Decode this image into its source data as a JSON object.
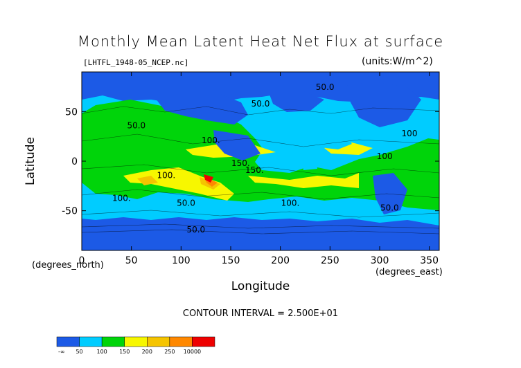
{
  "chart_data": {
    "type": "heatmap",
    "title": "Monthly Mean Latent Heat Net Flux at surface",
    "source_label": "[LHTFL_1948-05_NCEP.nc]",
    "units_label": "(units:W/m^2)",
    "xlabel": "Longitude",
    "xlabel_unit": "(degrees_east)",
    "ylabel": "Latitude",
    "ylabel_unit": "(degrees_north)",
    "xlim": [
      0,
      360
    ],
    "ylim": [
      -90,
      90
    ],
    "x_ticks": [
      0,
      50,
      100,
      150,
      200,
      250,
      300,
      350
    ],
    "y_ticks": [
      -50,
      0,
      50
    ],
    "contour_interval_text": "CONTOUR INTERVAL = 2.500E+01",
    "contour_labels": [
      {
        "lon": 55,
        "lat": 33,
        "text": "50.0"
      },
      {
        "lon": 130,
        "lat": 18,
        "text": "100."
      },
      {
        "lon": 160,
        "lat": -5,
        "text": "150."
      },
      {
        "lon": 174,
        "lat": -12,
        "text": "150."
      },
      {
        "lon": 85,
        "lat": -17,
        "text": "100."
      },
      {
        "lon": 40,
        "lat": -40,
        "text": "100."
      },
      {
        "lon": 105,
        "lat": -45,
        "text": "50.0"
      },
      {
        "lon": 210,
        "lat": -45,
        "text": "100."
      },
      {
        "lon": 310,
        "lat": -50,
        "text": "50.0"
      },
      {
        "lon": 245,
        "lat": 72,
        "text": "50.0"
      },
      {
        "lon": 330,
        "lat": 25,
        "text": "100"
      },
      {
        "lon": 305,
        "lat": 2,
        "text": "100"
      },
      {
        "lon": 115,
        "lat": -72,
        "text": "50.0"
      },
      {
        "lon": 180,
        "lat": 55,
        "text": "50.0"
      }
    ],
    "colorbar": {
      "bins": [
        {
          "label": "-∞",
          "color": "#1c5ae6"
        },
        {
          "label": "50",
          "color": "#00ccff"
        },
        {
          "label": "100",
          "color": "#00d40a"
        },
        {
          "label": "150",
          "color": "#f7f700"
        },
        {
          "label": "200",
          "color": "#f5c400"
        },
        {
          "label": "250",
          "color": "#ff8800"
        },
        {
          "label": "10000",
          "color": "#ee0000"
        }
      ]
    }
  }
}
